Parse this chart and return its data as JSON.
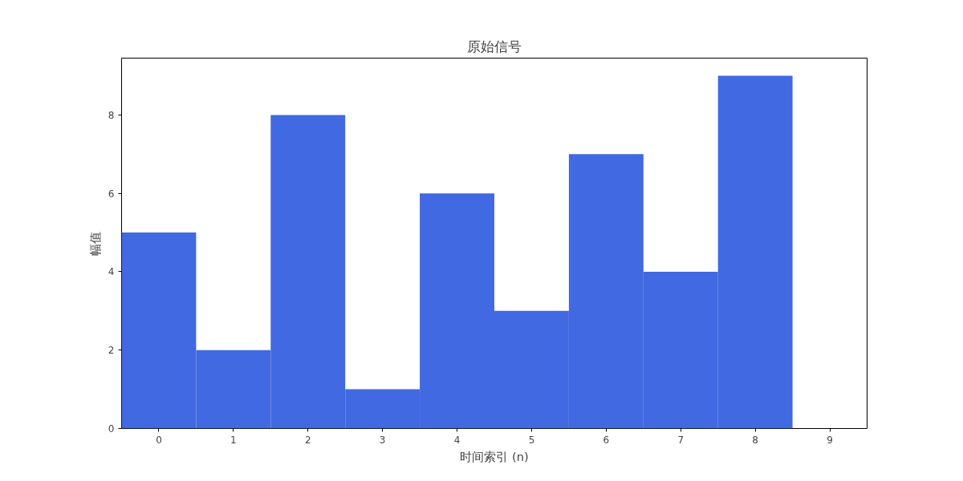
{
  "chart_data": {
    "type": "bar",
    "title": "原始信号",
    "xlabel": "时间索引 (n)",
    "ylabel": "幅值",
    "x": [
      0,
      1,
      2,
      3,
      4,
      5,
      6,
      7,
      8
    ],
    "values": [
      5,
      2,
      8,
      1,
      6,
      3,
      7,
      4,
      9
    ],
    "color": "#4169e1",
    "xlim": [
      -0.5,
      9.5
    ],
    "xticks": [
      0,
      1,
      2,
      3,
      4,
      5,
      6,
      7,
      8,
      9
    ],
    "ylim": [
      0,
      9.45
    ],
    "yticks": [
      0,
      2,
      4,
      6,
      8
    ],
    "grid": false
  }
}
